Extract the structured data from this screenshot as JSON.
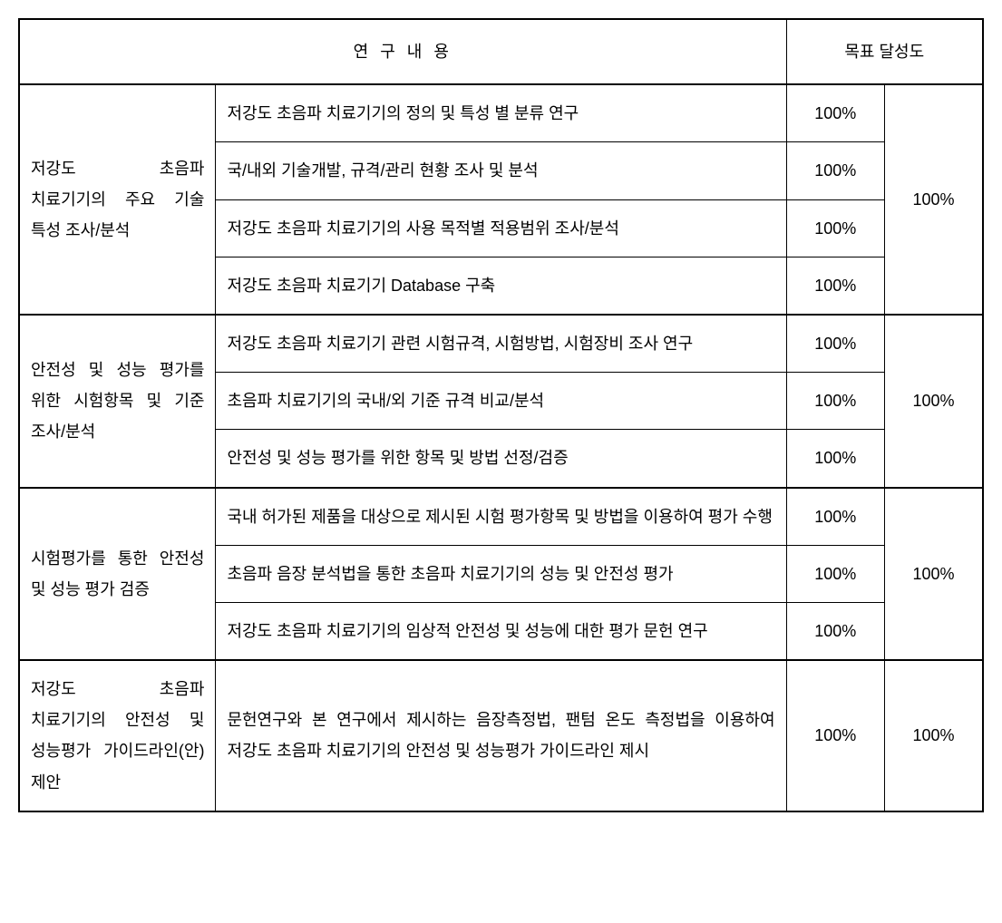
{
  "headers": {
    "research_content": "연 구 내 용",
    "achievement": "목표 달성도"
  },
  "groups": [
    {
      "category": "저강도 초음파 치료기기의 주요 기술 특성 조사/분석",
      "group_percent": "100%",
      "items": [
        {
          "detail": "저강도 초음파 치료기기의 정의 및 특성 별 분류 연구",
          "percent": "100%"
        },
        {
          "detail": "국/내외 기술개발, 규격/관리 현황 조사 및 분석",
          "percent": "100%"
        },
        {
          "detail": "저강도 초음파 치료기기의 사용 목적별 적용범위 조사/분석",
          "percent": "100%"
        },
        {
          "detail": "저강도 초음파 치료기기 Database 구축",
          "percent": "100%"
        }
      ]
    },
    {
      "category": "안전성 및 성능 평가를 위한 시험항목 및 기준 조사/분석",
      "group_percent": "100%",
      "items": [
        {
          "detail": "저강도 초음파 치료기기 관련 시험규격, 시험방법, 시험장비 조사 연구",
          "percent": "100%"
        },
        {
          "detail": "초음파 치료기기의 국내/외 기준 규격 비교/분석",
          "percent": "100%"
        },
        {
          "detail": "안전성 및 성능 평가를 위한 항목 및 방법 선정/검증",
          "percent": "100%"
        }
      ]
    },
    {
      "category": "시험평가를 통한 안전성 및 성능 평가 검증",
      "group_percent": "100%",
      "items": [
        {
          "detail": "국내 허가된 제품을 대상으로 제시된 시험 평가항목 및 방법을 이용하여 평가 수행",
          "percent": "100%"
        },
        {
          "detail": "초음파 음장 분석법을 통한 초음파 치료기기의 성능 및 안전성 평가",
          "percent": "100%"
        },
        {
          "detail": "저강도 초음파 치료기기의 임상적 안전성 및 성능에 대한 평가 문헌 연구",
          "percent": "100%"
        }
      ]
    },
    {
      "category": "저강도 초음파 치료기기의 안전성 및 성능평가 가이드라인(안) 제안",
      "group_percent": "100%",
      "items": [
        {
          "detail": "문헌연구와 본 연구에서 제시하는 음장측정법, 팬텀 온도 측정법을 이용하여 저강도 초음파 치료기기의 안전성 및 성능평가 가이드라인 제시",
          "percent": "100%"
        }
      ]
    }
  ]
}
